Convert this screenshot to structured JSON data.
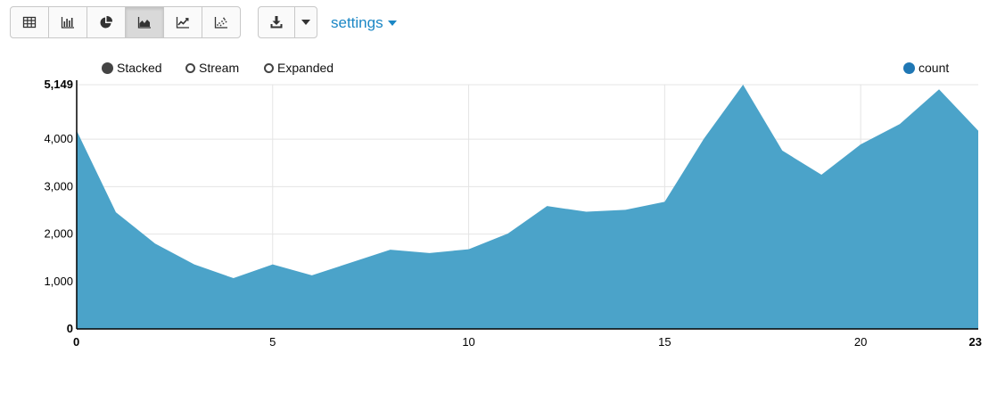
{
  "toolbar": {
    "views": [
      {
        "name": "table-view-button",
        "icon": "table-icon",
        "active": false
      },
      {
        "name": "bar-chart-button",
        "icon": "bar-chart-icon",
        "active": false
      },
      {
        "name": "pie-chart-button",
        "icon": "pie-chart-icon",
        "active": false
      },
      {
        "name": "area-chart-button",
        "icon": "area-chart-icon",
        "active": true
      },
      {
        "name": "line-chart-button",
        "icon": "line-chart-icon",
        "active": false
      },
      {
        "name": "scatter-chart-button",
        "icon": "scatter-chart-icon",
        "active": false
      }
    ],
    "download_icon": "download-icon",
    "settings_label": "settings"
  },
  "legend": {
    "options": [
      "Stacked",
      "Stream",
      "Expanded"
    ],
    "selected": "Stacked",
    "series_label": "count"
  },
  "colors": {
    "area": "#4ba3c9",
    "series_dot": "#1f77b4",
    "accent": "#1b87c5"
  },
  "chart_data": {
    "type": "area",
    "x": [
      0,
      1,
      2,
      3,
      4,
      5,
      6,
      7,
      8,
      9,
      10,
      11,
      12,
      13,
      14,
      15,
      16,
      17,
      18,
      19,
      20,
      21,
      22,
      23
    ],
    "series": [
      {
        "name": "count",
        "values": [
          4180,
          2460,
          1800,
          1360,
          1070,
          1360,
          1130,
          1400,
          1670,
          1600,
          1680,
          2010,
          2590,
          2470,
          2510,
          2680,
          4010,
          5149,
          3760,
          3250,
          3890,
          4320,
          5050,
          4180
        ]
      }
    ],
    "ylim": [
      0,
      5149
    ],
    "yticks": [
      {
        "v": 0,
        "label": "0"
      },
      {
        "v": 1000,
        "label": "1,000"
      },
      {
        "v": 2000,
        "label": "2,000"
      },
      {
        "v": 3000,
        "label": "3,000"
      },
      {
        "v": 4000,
        "label": "4,000"
      },
      {
        "v": 5149,
        "label": "5,149"
      }
    ],
    "xlim": [
      0,
      23
    ],
    "xticks": [
      {
        "v": 0,
        "label": "0"
      },
      {
        "v": 5,
        "label": "5"
      },
      {
        "v": 10,
        "label": "10"
      },
      {
        "v": 15,
        "label": "15"
      },
      {
        "v": 20,
        "label": "20"
      },
      {
        "v": 23,
        "label": "23"
      }
    ],
    "grid": true,
    "legend_position": "top-right",
    "title": "",
    "xlabel": "",
    "ylabel": ""
  }
}
